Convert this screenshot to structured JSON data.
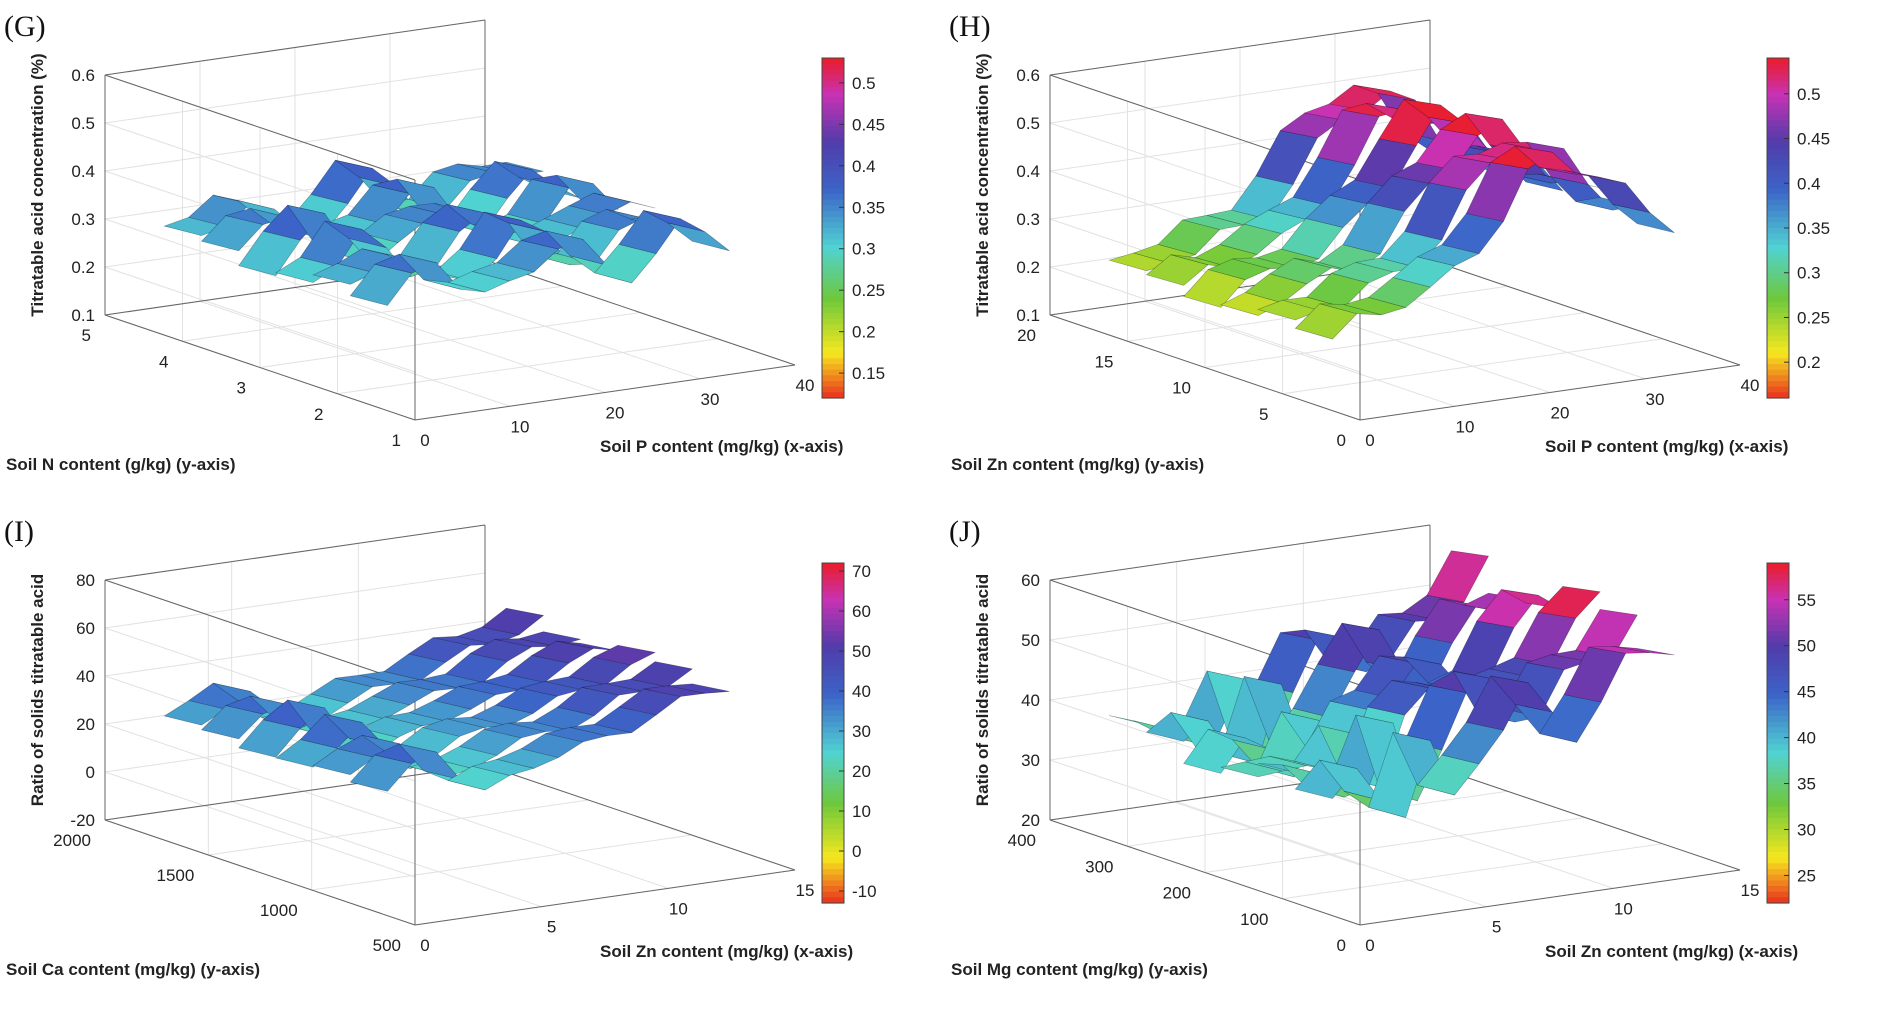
{
  "chart_data": [
    {
      "panel": "(G)",
      "type": "surface3d",
      "zlabel": "Titratable acid concentration (%)",
      "xlabel": "Soil P content (mg/kg) (x-axis)",
      "ylabel": "Soil N content (g/kg) (y-axis)",
      "xticks": [
        "0",
        "10",
        "20",
        "30",
        "40"
      ],
      "yticks": [
        "5",
        "4",
        "3",
        "2",
        "1"
      ],
      "zticks": [
        "0.6",
        "0.5",
        "0.4",
        "0.3",
        "0.2",
        "0.1"
      ],
      "xlim": [
        0,
        40
      ],
      "ylim": [
        1,
        5
      ],
      "zlim": [
        0.1,
        0.6
      ],
      "colorbar": {
        "ticks": [
          "0.5",
          "0.45",
          "0.4",
          "0.35",
          "0.3",
          "0.25",
          "0.2",
          "0.15"
        ],
        "range": [
          0.12,
          0.53
        ]
      },
      "surface_profile": [
        0.3,
        0.34,
        0.38,
        0.33,
        0.29,
        0.3,
        0.34,
        0.38,
        0.36,
        0.31,
        0.29,
        0.33,
        0.37,
        0.36,
        0.33
      ],
      "color_range": [
        0.12,
        0.53
      ]
    },
    {
      "panel": "(H)",
      "type": "surface3d",
      "zlabel": "Titratable acid concentration (%)",
      "xlabel": "Soil P content (mg/kg) (x-axis)",
      "ylabel": "Soil Zn content (mg/kg) (y-axis)",
      "xticks": [
        "0",
        "10",
        "20",
        "30",
        "40"
      ],
      "yticks": [
        "20",
        "15",
        "10",
        "5",
        "0"
      ],
      "zticks": [
        "0.6",
        "0.5",
        "0.4",
        "0.3",
        "0.2",
        "0.1"
      ],
      "xlim": [
        0,
        40
      ],
      "ylim": [
        0,
        20
      ],
      "zlim": [
        0.1,
        0.6
      ],
      "colorbar": {
        "ticks": [
          "0.5",
          "0.45",
          "0.4",
          "0.35",
          "0.3",
          "0.25",
          "0.2"
        ],
        "range": [
          0.16,
          0.54
        ]
      },
      "surface_profile": [
        0.23,
        0.26,
        0.27,
        0.29,
        0.3,
        0.33,
        0.38,
        0.44,
        0.5,
        0.54,
        0.53,
        0.49,
        0.44,
        0.4,
        0.37
      ],
      "color_range": [
        0.16,
        0.54
      ]
    },
    {
      "panel": "(I)",
      "type": "surface3d",
      "zlabel": "Ratio of solids titratable acid",
      "xlabel": "Soil Zn content (mg/kg) (x-axis)",
      "ylabel": "Soil Ca content (mg/kg) (y-axis)",
      "xticks": [
        "0",
        "5",
        "10",
        "15"
      ],
      "yticks": [
        "2000",
        "1500",
        "1000",
        "500"
      ],
      "zticks": [
        "80",
        "60",
        "40",
        "20",
        "0",
        "-20"
      ],
      "xlim": [
        0,
        15
      ],
      "ylim": [
        500,
        2000
      ],
      "zlim": [
        -20,
        80
      ],
      "colorbar": {
        "ticks": [
          "70",
          "60",
          "50",
          "40",
          "30",
          "20",
          "10",
          "0",
          "-10"
        ],
        "range": [
          -13,
          72
        ]
      },
      "surface_profile": [
        28,
        36,
        42,
        30,
        22,
        26,
        30,
        33,
        35,
        37,
        40,
        44,
        47,
        50,
        52
      ],
      "color_range": [
        -13,
        72
      ]
    },
    {
      "panel": "(J)",
      "type": "surface3d",
      "zlabel": "Ratio of solids titratable acid",
      "xlabel": "Soil Zn content (mg/kg) (x-axis)",
      "ylabel": "Soil Mg content (mg/kg) (y-axis)",
      "xticks": [
        "0",
        "5",
        "10",
        "15"
      ],
      "yticks": [
        "400",
        "300",
        "200",
        "100",
        "0"
      ],
      "zticks": [
        "60",
        "50",
        "40",
        "30",
        "20"
      ],
      "xlim": [
        0,
        15
      ],
      "ylim": [
        0,
        400
      ],
      "zlim": [
        20,
        60
      ],
      "colorbar": {
        "ticks": [
          "55",
          "50",
          "45",
          "40",
          "35",
          "30",
          "25"
        ],
        "range": [
          22,
          59
        ]
      },
      "surface_profile": [
        38,
        40,
        37,
        35,
        44,
        34,
        42,
        47,
        50,
        46,
        44,
        48,
        52,
        55,
        57
      ],
      "color_range": [
        22,
        59
      ]
    }
  ]
}
